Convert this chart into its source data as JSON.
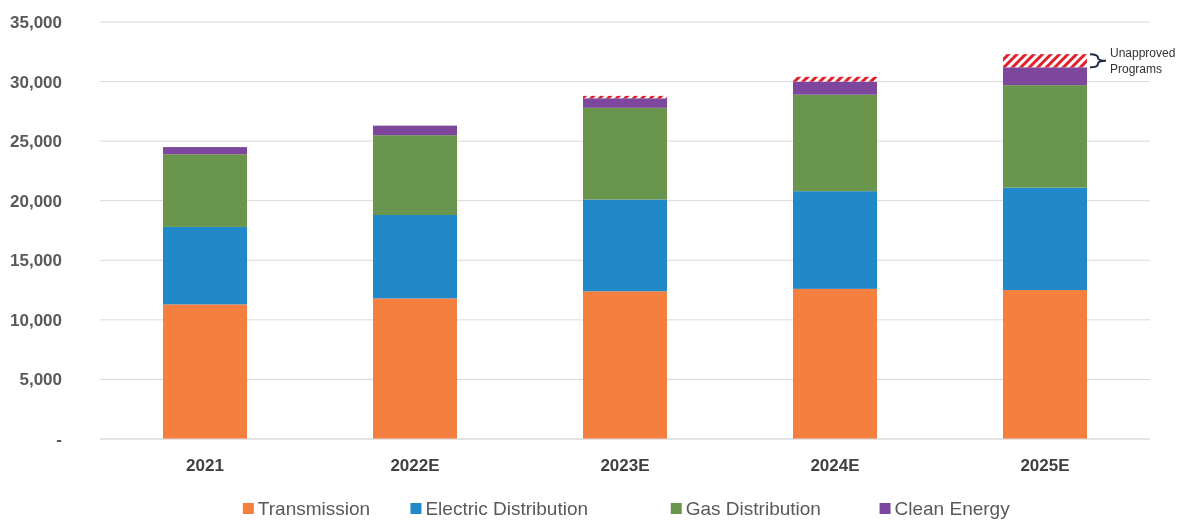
{
  "chart_data": {
    "type": "bar",
    "stacked": true,
    "categories": [
      "2021",
      "2022E",
      "2023E",
      "2024E",
      "2025E"
    ],
    "series": [
      {
        "name": "Transmission",
        "color": "#f47f3e",
        "values": [
          11300,
          11800,
          12400,
          12600,
          12500
        ]
      },
      {
        "name": "Electric Distribution",
        "color": "#2289c8",
        "values": [
          6500,
          7000,
          7700,
          8200,
          8600
        ]
      },
      {
        "name": "Gas Distribution",
        "color": "#6a954c",
        "values": [
          6100,
          6700,
          7700,
          8100,
          8600
        ]
      },
      {
        "name": "Clean Energy",
        "color": "#7c479d",
        "values": [
          600,
          800,
          800,
          1100,
          1500
        ]
      },
      {
        "name": "Unapproved Programs",
        "color": "#e0202a",
        "values": [
          null,
          null,
          200,
          400,
          1100
        ]
      }
    ],
    "ylim": [
      0,
      35000
    ],
    "yticks": [
      {
        "value": 0,
        "label": "-"
      },
      {
        "value": 5000,
        "label": "5,000"
      },
      {
        "value": 10000,
        "label": "10,000"
      },
      {
        "value": 15000,
        "label": "15,000"
      },
      {
        "value": 20000,
        "label": "20,000"
      },
      {
        "value": 25000,
        "label": "25,000"
      },
      {
        "value": 30000,
        "label": "30,000"
      },
      {
        "value": 35000,
        "label": "35,000"
      }
    ],
    "grid": "y",
    "legend": "bottom"
  }
}
